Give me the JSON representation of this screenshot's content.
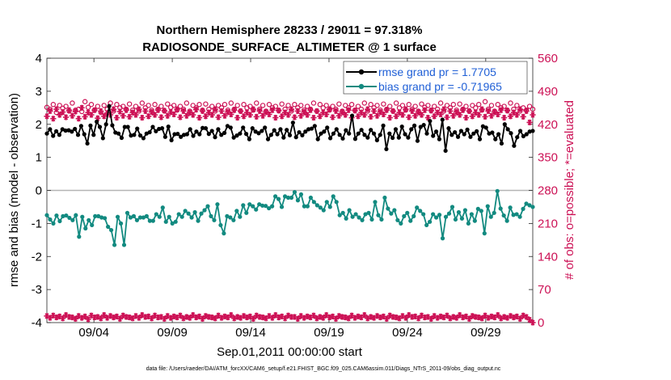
{
  "chart_data": {
    "type": "line",
    "title_line1": "Northern Hemisphere 28233 / 29011 = 97.318%",
    "title_line2": "RADIOSONDE_SURFACE_ALTIMETER @ 1 surface",
    "ylabel": "rmse and bias (model - observation)",
    "ylabel_right": "# of obs: o=possible; *=evaluated",
    "xlabel": "Sep.01,2011 00:00:00 start",
    "footnote": "data file: /Users/raeder/DAI/ATM_forcXX/CAM6_setup/f.e21.FHIST_BGC.f09_025.CAM6assim.011/Diags_NTrS_2011-09/obs_diag_output.nc",
    "ylim": [
      -4,
      4
    ],
    "ylim_right": [
      0,
      560
    ],
    "xlim": [
      1,
      32
    ],
    "y_ticks": [
      "4",
      "3",
      "2",
      "1",
      "0",
      "-1",
      "-2",
      "-3",
      "-4"
    ],
    "y_ticks_right": [
      "560",
      "490",
      "420",
      "350",
      "280",
      "210",
      "140",
      "70",
      "0"
    ],
    "x_ticks": [
      {
        "day": 4.0,
        "label": "09/04"
      },
      {
        "day": 9.0,
        "label": "09/09"
      },
      {
        "day": 14.0,
        "label": "09/14"
      },
      {
        "day": 19.0,
        "label": "09/19"
      },
      {
        "day": 24.0,
        "label": "09/24"
      },
      {
        "day": 29.0,
        "label": "09/29"
      }
    ],
    "legend": {
      "rmse": "rmse grand pr = 1.7705",
      "bias": "bias grand pr = -0.71965"
    },
    "colors": {
      "rmse": "#000000",
      "bias": "#128a80",
      "obs": "#cc1155",
      "zero": "#b4b4b4",
      "legend_text": "#1f5fd6"
    },
    "series": [
      {
        "name": "rmse",
        "values": [
          1.72,
          1.85,
          1.65,
          1.79,
          1.68,
          1.85,
          1.81,
          1.82,
          1.78,
          1.86,
          1.68,
          1.95,
          1.7,
          1.42,
          1.96,
          1.68,
          2.08,
          1.92,
          1.58,
          2.0,
          2.55,
          1.97,
          1.75,
          1.72,
          1.59,
          1.92,
          1.92,
          1.66,
          1.68,
          1.87,
          1.66,
          1.58,
          1.72,
          1.76,
          1.92,
          1.79,
          1.86,
          1.88,
          1.62,
          1.93,
          1.52,
          1.7,
          1.71,
          1.62,
          1.68,
          1.7,
          1.85,
          1.65,
          1.78,
          1.7,
          1.89,
          1.88,
          1.71,
          1.8,
          1.61,
          1.85,
          1.68,
          1.74,
          1.95,
          1.9,
          1.6,
          1.66,
          1.72,
          1.9,
          1.71,
          1.55,
          1.88,
          1.78,
          1.73,
          1.8,
          1.9,
          1.55,
          1.68,
          1.82,
          1.7,
          1.85,
          1.6,
          1.83,
          1.67,
          2.05,
          1.61,
          1.76,
          1.67,
          1.78,
          1.85,
          1.87,
          1.95,
          1.55,
          1.72,
          1.78,
          1.9,
          1.58,
          1.72,
          1.85,
          1.68,
          1.57,
          1.82,
          1.72,
          2.26,
          1.56,
          1.72,
          1.83,
          1.68,
          1.6,
          1.83,
          1.72,
          1.52,
          1.68,
          1.96,
          1.25,
          1.72,
          1.59,
          1.85,
          1.6,
          1.93,
          1.7,
          1.6,
          1.85,
          1.96,
          1.5,
          1.92,
          1.98,
          1.72,
          2.1,
          1.65,
          1.78,
          1.55,
          2.14,
          1.2,
          1.88,
          1.68,
          1.76,
          1.62,
          1.8,
          1.7,
          1.84,
          1.62,
          1.72,
          1.79,
          1.55,
          1.94,
          1.9,
          1.72,
          1.75,
          1.55,
          1.7,
          1.42,
          2.0,
          1.85,
          1.73,
          1.35,
          1.61,
          1.8,
          1.64,
          1.7,
          1.78,
          1.8
        ]
      },
      {
        "name": "bias",
        "values": [
          -0.75,
          -0.88,
          -1.0,
          -0.76,
          -0.93,
          -0.78,
          -0.76,
          -0.83,
          -0.9,
          -0.75,
          -1.4,
          -0.8,
          -1.15,
          -0.9,
          -1.05,
          -0.78,
          -0.78,
          -0.82,
          -0.84,
          -1.1,
          -1.2,
          -1.65,
          -0.8,
          -1.0,
          -1.65,
          -0.68,
          -0.82,
          -0.78,
          -0.9,
          -0.82,
          -0.82,
          -0.78,
          -0.92,
          -0.92,
          -0.72,
          -0.8,
          -0.52,
          -0.95,
          -0.8,
          -1.0,
          -0.95,
          -0.72,
          -0.8,
          -0.62,
          -0.7,
          -0.82,
          -0.66,
          -0.92,
          -0.7,
          -0.6,
          -0.48,
          -0.78,
          -0.9,
          -0.42,
          -1.05,
          -1.3,
          -0.78,
          -0.82,
          -0.9,
          -0.62,
          -0.8,
          -0.45,
          -0.68,
          -0.42,
          -0.48,
          -0.58,
          -0.42,
          -0.46,
          -0.47,
          -0.54,
          -0.48,
          -0.18,
          -0.26,
          -0.5,
          -0.18,
          -0.22,
          -0.22,
          -0.05,
          -0.3,
          -0.12,
          -0.48,
          -0.48,
          -0.22,
          -0.35,
          -0.45,
          -0.52,
          -0.6,
          -0.35,
          -0.5,
          -0.18,
          -0.35,
          -0.75,
          -0.68,
          -0.85,
          -0.6,
          -0.8,
          -0.72,
          -0.82,
          -0.9,
          -0.72,
          -0.68,
          -0.88,
          -0.35,
          -0.75,
          -0.88,
          -0.22,
          -0.55,
          -0.7,
          -0.6,
          -0.9,
          -1.0,
          -0.78,
          -0.68,
          -0.92,
          -0.78,
          -0.52,
          -0.62,
          -0.72,
          -1.05,
          -0.95,
          -0.72,
          -0.82,
          -0.74,
          -1.45,
          -0.8,
          -0.7,
          -0.5,
          -0.88,
          -0.66,
          -0.85,
          -0.6,
          -1.0,
          -0.72,
          -0.92,
          -0.56,
          -0.62,
          -1.3,
          -0.48,
          -0.8,
          -0.68,
          -0.02,
          -0.55,
          -0.76,
          -0.92,
          -0.52,
          -0.74,
          -0.72,
          -0.8,
          -0.56,
          -0.4,
          -0.45,
          -0.5
        ]
      },
      {
        "name": "obs_possible",
        "values": [
          456,
          452,
          462,
          445,
          460,
          454,
          458,
          448,
          465,
          450,
          452,
          447,
          468,
          456,
          462,
          450,
          458,
          445,
          460,
          452,
          465,
          448,
          462,
          455,
          458,
          452,
          463,
          450,
          458,
          448,
          465,
          455,
          460,
          450,
          462,
          452,
          458,
          448,
          463,
          456,
          460,
          450,
          458,
          452,
          465,
          448,
          460,
          455,
          462,
          450,
          463,
          452,
          458,
          448,
          460,
          455,
          462,
          450,
          465,
          452,
          460,
          448,
          462,
          455,
          458,
          450,
          465,
          452,
          460,
          448,
          462,
          455,
          458,
          450,
          463,
          452,
          460,
          448,
          462,
          455,
          460,
          450,
          458,
          452,
          465,
          448,
          462,
          455,
          460,
          450,
          458,
          452,
          463,
          448,
          460,
          455,
          462,
          450,
          458,
          452,
          465,
          448,
          462,
          455,
          460,
          450,
          463,
          452,
          458,
          448,
          465,
          455,
          460,
          450,
          462,
          452,
          458,
          448,
          463,
          456,
          460,
          450,
          458,
          452,
          465,
          448,
          460,
          455,
          462,
          450,
          463,
          452,
          458,
          448,
          460,
          455,
          462,
          450,
          468,
          452,
          460,
          448,
          462,
          455,
          458,
          450,
          465,
          452,
          460,
          448,
          455,
          450,
          458,
          452
        ]
      },
      {
        "name": "obs_evaluated",
        "values": [
          437,
          448,
          432,
          452,
          440,
          446,
          435,
          450,
          438,
          447,
          432,
          455,
          436,
          445,
          440,
          450,
          433,
          448,
          437,
          444,
          440,
          452,
          434,
          447,
          438,
          450,
          436,
          445,
          440,
          452,
          434,
          448,
          437,
          446,
          440,
          450,
          435,
          449,
          438,
          446,
          441,
          452,
          435,
          448,
          438,
          445,
          440,
          451,
          434,
          448,
          437,
          445,
          440,
          452,
          435,
          448,
          438,
          446,
          441,
          450,
          434,
          448,
          437,
          445,
          440,
          452,
          436,
          448,
          438,
          446,
          441,
          450,
          434,
          449,
          437,
          445,
          440,
          452,
          435,
          448,
          438,
          446,
          440,
          450,
          434,
          448,
          437,
          445,
          441,
          452,
          435,
          448,
          438,
          446,
          440,
          450,
          434,
          449,
          437,
          445,
          440,
          452,
          436,
          448,
          438,
          446,
          441,
          450,
          434,
          448,
          437,
          445,
          440,
          452,
          435,
          448,
          438,
          446,
          440,
          450,
          434,
          449,
          437,
          445,
          441,
          452,
          435,
          448,
          438,
          446,
          440,
          450,
          434,
          448,
          437,
          445,
          440,
          452,
          436,
          448,
          438,
          446,
          441,
          450,
          434,
          449,
          437,
          445,
          440,
          452,
          436,
          448,
          424,
          440
        ]
      },
      {
        "name": "obs_surface_evaluated",
        "values": [
          14,
          10,
          15,
          11,
          13,
          9,
          16,
          12,
          11,
          8,
          14,
          10,
          13,
          7,
          15,
          11,
          12,
          9,
          16,
          10,
          14,
          11,
          13,
          8,
          15,
          12,
          11,
          9,
          14,
          10,
          16,
          12,
          13,
          9,
          15,
          11,
          12,
          8,
          14,
          10,
          13,
          11,
          15,
          9,
          12,
          10,
          16,
          11,
          13,
          8,
          14,
          12,
          11,
          9,
          15,
          10,
          13,
          11,
          16,
          9,
          12,
          10,
          14,
          11,
          13,
          8,
          15,
          12,
          11,
          9,
          14,
          10,
          16,
          11,
          13,
          9,
          15,
          12,
          12,
          8,
          14,
          10,
          13,
          11,
          15,
          9,
          12,
          10,
          16,
          11,
          13,
          8,
          14,
          12,
          11,
          9,
          15,
          10,
          13,
          11,
          16,
          9,
          12,
          10,
          14,
          11,
          13,
          8,
          15,
          12,
          11,
          9,
          14,
          10,
          16,
          12,
          13,
          9,
          15,
          11,
          12,
          8,
          14,
          10,
          13,
          11,
          15,
          9,
          12,
          10,
          16,
          11,
          13,
          8,
          14,
          12,
          11,
          9,
          15,
          10,
          13,
          11,
          16,
          9,
          12,
          10,
          14,
          11,
          13,
          8,
          15,
          12,
          6,
          0
        ]
      }
    ]
  }
}
